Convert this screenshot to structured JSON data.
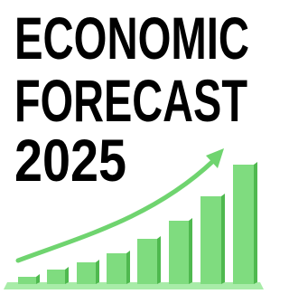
{
  "title": {
    "lines": [
      "ECONOMIC",
      "FORECAST",
      "2025"
    ]
  }
}
